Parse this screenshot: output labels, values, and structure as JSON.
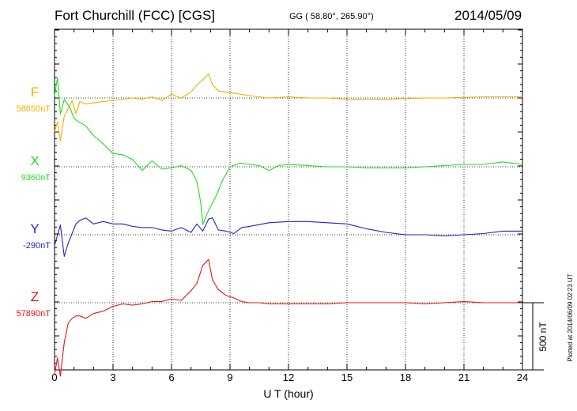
{
  "header": {
    "station": "Fort Churchill (FCC)  [CGS]",
    "coords": "GG ( 58.80°, 265.90°)",
    "date": "2014/05/09"
  },
  "footer": {
    "plotted_note": "Plotted at 2014/06/09 02:23 UT"
  },
  "scale_label": "500 nT",
  "chart_data": {
    "type": "line",
    "title": "Fort Churchill (FCC)  [CGS]",
    "xlabel": "U T (hour)",
    "ylabel": "",
    "xlim": [
      0,
      24
    ],
    "xticks": [
      "0",
      "3",
      "6",
      "9",
      "12",
      "15",
      "18",
      "21",
      "24"
    ],
    "y_unit": "nT",
    "scale_bar_nT": 500,
    "grid": true,
    "series": [
      {
        "name": "F",
        "baseline_label": "58650nT",
        "baseline": 58650,
        "color": "#f0b000",
        "x": [
          0,
          0.15,
          0.3,
          0.5,
          0.7,
          0.9,
          1.1,
          1.3,
          1.6,
          2.0,
          2.5,
          3.0,
          3.5,
          4.0,
          4.5,
          5.0,
          5.5,
          6.0,
          6.5,
          7.0,
          7.3,
          7.6,
          7.9,
          8.1,
          8.4,
          8.8,
          9.2,
          9.6,
          10.0,
          10.5,
          11.0,
          12,
          13,
          14,
          15,
          16,
          17,
          18,
          19,
          20,
          21,
          22,
          23,
          24
        ],
        "values": [
          58370,
          58450,
          58290,
          58500,
          58560,
          58630,
          58520,
          58620,
          58600,
          58610,
          58620,
          58630,
          58640,
          58650,
          58640,
          58660,
          58630,
          58680,
          58650,
          58700,
          58760,
          58800,
          58850,
          58760,
          58710,
          58700,
          58690,
          58680,
          58670,
          58660,
          58650,
          58660,
          58650,
          58650,
          58640,
          58640,
          58640,
          58645,
          58650,
          58650,
          58655,
          58660,
          58660,
          58660
        ]
      },
      {
        "name": "X",
        "baseline_label": "9360nT",
        "baseline": 9360,
        "color": "#22dd22",
        "x": [
          0,
          0.15,
          0.3,
          0.5,
          0.8,
          1.0,
          1.3,
          1.6,
          2.0,
          2.5,
          3.0,
          3.5,
          4.0,
          4.5,
          5.0,
          5.5,
          6.0,
          6.5,
          7.0,
          7.3,
          7.5,
          7.6,
          7.8,
          8.0,
          8.3,
          8.6,
          9.0,
          9.5,
          10.0,
          10.5,
          11.0,
          11.5,
          12,
          13,
          14,
          15,
          16,
          17,
          18,
          19,
          20,
          21,
          22,
          23,
          24
        ],
        "values": [
          9950,
          10100,
          9800,
          9920,
          9850,
          9760,
          9730,
          9700,
          9620,
          9550,
          9470,
          9460,
          9420,
          9330,
          9410,
          9340,
          9350,
          9370,
          9330,
          9240,
          9060,
          8880,
          8960,
          9030,
          9120,
          9240,
          9360,
          9390,
          9380,
          9370,
          9330,
          9370,
          9380,
          9370,
          9360,
          9360,
          9350,
          9350,
          9350,
          9360,
          9370,
          9380,
          9380,
          9400,
          9380
        ]
      },
      {
        "name": "Y",
        "baseline_label": "-290nT",
        "baseline": -290,
        "color": "#2222cc",
        "x": [
          0,
          0.3,
          0.5,
          0.7,
          0.9,
          1.1,
          1.3,
          1.6,
          2.0,
          2.5,
          3.0,
          3.5,
          4.0,
          4.5,
          5.0,
          5.5,
          6.0,
          6.5,
          7.0,
          7.3,
          7.6,
          7.9,
          8.1,
          8.4,
          8.8,
          9.2,
          9.6,
          10.0,
          11,
          12,
          13,
          14,
          15,
          16,
          17,
          18,
          19,
          20,
          21,
          22,
          23,
          24
        ],
        "values": [
          -380,
          -210,
          -470,
          -360,
          -280,
          -200,
          -170,
          -150,
          -200,
          -180,
          -200,
          -200,
          -220,
          -230,
          -230,
          -250,
          -260,
          -230,
          -270,
          -200,
          -260,
          -160,
          -150,
          -250,
          -260,
          -280,
          -230,
          -220,
          -190,
          -180,
          -180,
          -190,
          -200,
          -240,
          -270,
          -290,
          -290,
          -300,
          -290,
          -280,
          -260,
          -260
        ]
      },
      {
        "name": "Z",
        "baseline_label": "57890nT",
        "baseline": 57890,
        "color": "#ee1111",
        "x": [
          0,
          0.15,
          0.3,
          0.5,
          0.7,
          0.9,
          1.1,
          1.3,
          1.6,
          2.0,
          2.5,
          3.0,
          3.5,
          4.0,
          4.5,
          5.0,
          5.5,
          6.0,
          6.5,
          7.0,
          7.3,
          7.6,
          7.9,
          8.1,
          8.4,
          8.8,
          9.2,
          9.6,
          10.0,
          10.5,
          11,
          12,
          13,
          14,
          15,
          16,
          17,
          18,
          19,
          20,
          21,
          22,
          23,
          24
        ],
        "values": [
          57290,
          57430,
          57280,
          57560,
          57720,
          57760,
          57780,
          57780,
          57760,
          57800,
          57820,
          57860,
          57880,
          57870,
          57880,
          57900,
          57900,
          57920,
          57910,
          57990,
          58050,
          58200,
          58250,
          58080,
          58000,
          57950,
          57930,
          57900,
          57890,
          57890,
          57880,
          57880,
          57880,
          57880,
          57890,
          57890,
          57890,
          57890,
          57880,
          57890,
          57900,
          57890,
          57890,
          57890
        ]
      }
    ]
  }
}
